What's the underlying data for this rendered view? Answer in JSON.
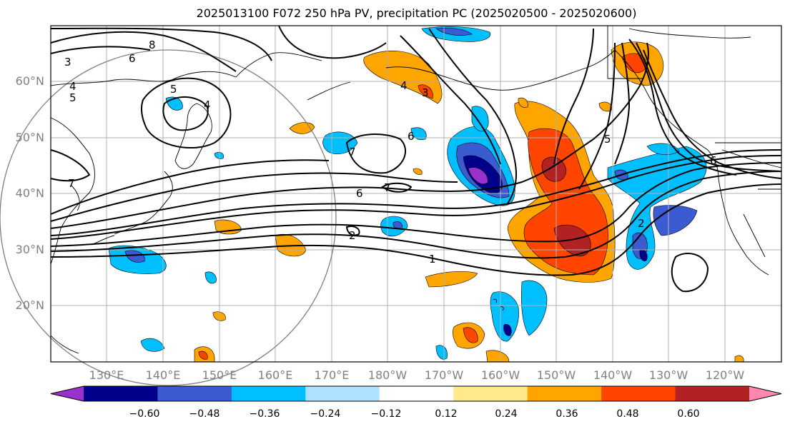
{
  "title": "2025013100 F072 250 hPa PV, precipitation PC (2025020500 - 2025020600)",
  "lat_labels": [
    "60°N",
    "50°N",
    "40°N",
    "30°N",
    "20°N"
  ],
  "lon_labels": [
    "130°E",
    "140°E",
    "150°E",
    "160°E",
    "170°E",
    "180°W",
    "170°W",
    "160°W",
    "150°W",
    "140°W",
    "130°W",
    "120°W"
  ],
  "contour_labels": [
    "1",
    "2",
    "3",
    "4",
    "5",
    "6",
    "7",
    "8"
  ],
  "colorbar": {
    "tick_labels": [
      "−0.60",
      "−0.48",
      "−0.36",
      "−0.24",
      "−0.12",
      "0.12",
      "0.24",
      "0.36",
      "0.48",
      "0.60"
    ],
    "colors": [
      "#9932cc",
      "#00008b",
      "#3b5bd1",
      "#00bfff",
      "#b0e0ff",
      "#ffffff",
      "#ffe98a",
      "#ffa500",
      "#ff4500",
      "#b22222",
      "#ff88b0"
    ]
  }
}
